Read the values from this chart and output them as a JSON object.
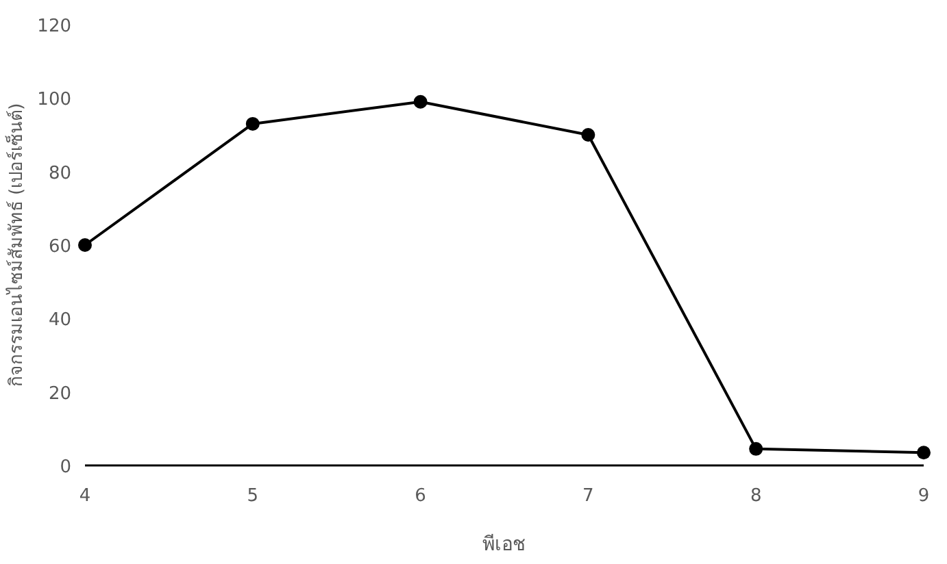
{
  "chart_data": {
    "type": "line",
    "xlabel": "พีเอช",
    "ylabel": "กิจกรรมเอนไซม์สัมพัทธ์ (เปอร์เซ็นต์)",
    "x": [
      4,
      5,
      6,
      7,
      8,
      9
    ],
    "values": [
      60,
      93,
      99,
      90,
      4.5,
      3.5
    ],
    "color": "#000000",
    "marker": "circle",
    "line_style": "solid",
    "grid": false,
    "xlim": [
      4,
      9
    ],
    "ylim": [
      0,
      120
    ],
    "xticks": [
      4,
      5,
      6,
      7,
      8,
      9
    ],
    "yticks": [
      0,
      20,
      40,
      60,
      80,
      100,
      120
    ]
  }
}
